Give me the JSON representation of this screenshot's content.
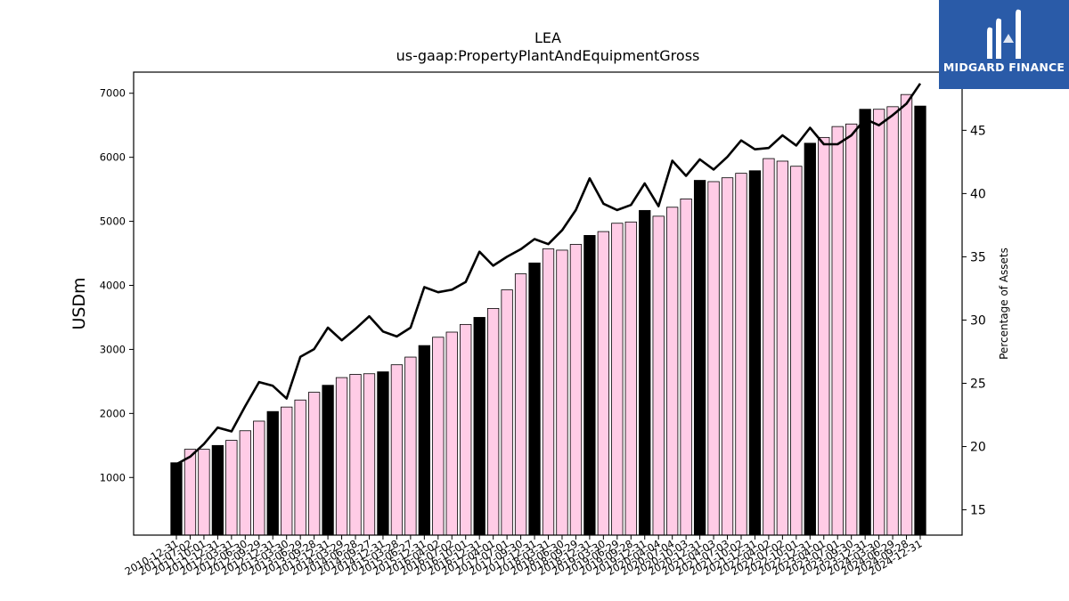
{
  "chart_data": {
    "type": "bar",
    "title": "LEA",
    "subtitle": "us-gaap:PropertyPlantAndEquipmentGross",
    "ylabel": "USDm",
    "y2label": "Percentage of Assets",
    "ylim": [
      100,
      7330
    ],
    "y2lim": [
      13.0,
      49.6
    ],
    "yticks": [
      1000,
      2000,
      3000,
      4000,
      5000,
      6000,
      7000
    ],
    "y2ticks": [
      15,
      20,
      25,
      30,
      35,
      40,
      45
    ],
    "categories": [
      "2010-12-31",
      "2011-07-02",
      "2011-10-01",
      "2011-12-31",
      "2012-03-31",
      "2012-06-30",
      "2012-09-29",
      "2012-12-31",
      "2013-03-30",
      "2013-06-29",
      "2013-09-28",
      "2013-12-31",
      "2014-03-29",
      "2014-06-28",
      "2014-09-27",
      "2014-12-31",
      "2015-03-28",
      "2015-06-27",
      "2015-12-31",
      "2016-04-02",
      "2016-07-02",
      "2016-10-01",
      "2016-12-31",
      "2017-04-01",
      "2017-07-01",
      "2017-09-30",
      "2017-12-31",
      "2018-03-31",
      "2018-06-30",
      "2018-09-29",
      "2018-12-31",
      "2019-03-30",
      "2019-06-29",
      "2019-09-28",
      "2019-12-31",
      "2020-04-04",
      "2020-07-04",
      "2020-10-03",
      "2020-12-31",
      "2021-04-03",
      "2021-07-03",
      "2021-10-02",
      "2021-12-31",
      "2022-04-02",
      "2022-07-02",
      "2022-10-01",
      "2022-12-31",
      "2023-04-01",
      "2023-07-01",
      "2023-09-30",
      "2023-12-31",
      "2024-03-30",
      "2024-06-29",
      "2024-09-28",
      "2024-12-31"
    ],
    "tick_labels": [
      "2010-12-31",
      "2011-07-02",
      "2011-10-01",
      "2011-12-31",
      "2012-03-31",
      "2012-06-30",
      "2012-09-29",
      "2012-12-31",
      "2013-03-30",
      "2013-06-29",
      "2013-09-28",
      "2013-12-31",
      "2014-03-29",
      "2014-06-28",
      "2014-09-27",
      "2014-12-31",
      "2015-03-28",
      "2015-06-27",
      "2015-12-31",
      "2016-04-02",
      "2016-07-02",
      "2016-10-01",
      "2016-12-31",
      "2017-04-01",
      "2017-07-01",
      "2017-09-30",
      "2017-12-31",
      "2018-03-31",
      "2018-06-30",
      "2018-09-29",
      "2018-12-31",
      "2019-03-30",
      "2019-06-29",
      "2019-09-28",
      "2019-12-31",
      "2020-04-04",
      "2020-07-04",
      "2020-10-03",
      "2020-12-31",
      "2021-04-03",
      "2021-07-03",
      "2021-10-02",
      "2021-12-31",
      "2022-04-02",
      "2022-07-02",
      "2022-10-01",
      "2022-12-31",
      "2023-04-01",
      "2023-07-01",
      "2023-09-30",
      "2023-12-31",
      "2024-03-30",
      "2024-06-29",
      "2024-09-28",
      "2024-12-31"
    ],
    "series": [
      {
        "name": "",
        "type": "bar",
        "axis": "left",
        "values": [
          1230,
          1440,
          1440,
          1500,
          1580,
          1730,
          1880,
          2030,
          2100,
          2210,
          2330,
          2440,
          2560,
          2610,
          2620,
          2650,
          2760,
          2880,
          3060,
          3190,
          3270,
          3390,
          3500,
          3640,
          3930,
          4180,
          4350,
          4570,
          4550,
          4640,
          4780,
          4840,
          4970,
          4990,
          5170,
          5080,
          5220,
          5350,
          5640,
          5620,
          5680,
          5750,
          5790,
          5980,
          5940,
          5860,
          6220,
          6310,
          6480,
          6520,
          6750,
          6750,
          6790,
          6980,
          6800
        ],
        "highlight_color": "#000000",
        "normal_color": "#ffcce6"
      },
      {
        "name": "",
        "type": "line",
        "axis": "right",
        "color": "#000000",
        "values": [
          18.6,
          19.2,
          20.2,
          21.5,
          21.2,
          23.2,
          25.1,
          24.8,
          23.8,
          27.1,
          27.7,
          29.4,
          28.4,
          29.3,
          30.3,
          29.1,
          28.7,
          29.4,
          32.6,
          32.2,
          32.4,
          33.0,
          35.4,
          34.3,
          35.0,
          35.6,
          36.4,
          36.0,
          37.1,
          38.7,
          41.2,
          39.2,
          38.7,
          39.1,
          40.8,
          39.0,
          42.6,
          41.4,
          42.7,
          41.9,
          42.9,
          44.2,
          43.5,
          43.6,
          44.6,
          43.8,
          45.2,
          43.9,
          43.9,
          44.6,
          45.9,
          45.4,
          46.2,
          47.1,
          48.7
        ]
      }
    ],
    "highlight_indices": [
      0,
      3,
      7,
      11,
      15,
      18,
      22,
      26,
      30,
      34,
      38,
      42,
      46,
      50,
      54
    ],
    "grid": false,
    "legend": "none"
  },
  "brand": {
    "name": "MIDGARD FINANCE",
    "color": "#2a5ba8"
  }
}
